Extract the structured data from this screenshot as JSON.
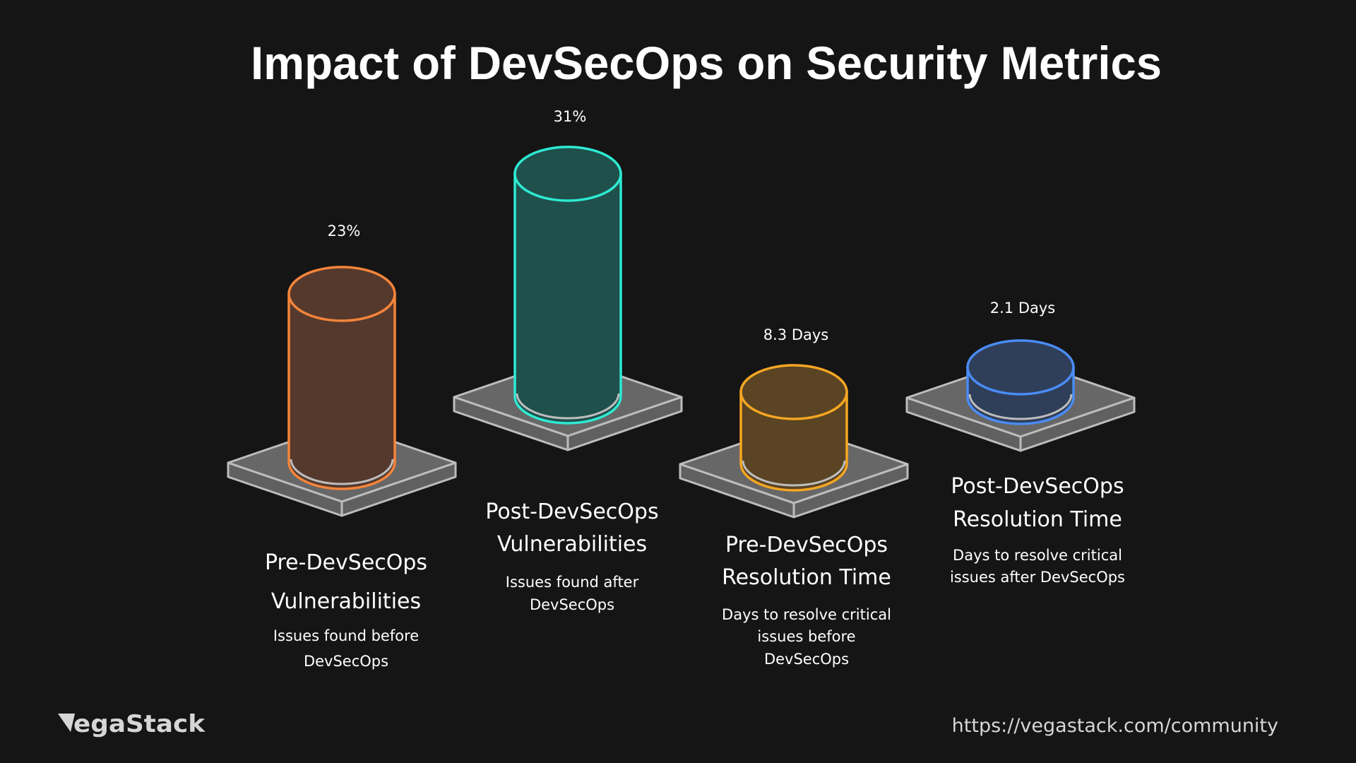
{
  "chart_data": {
    "type": "bar",
    "title": "Impact of DevSecOps on Security Metrics",
    "style": "3d-cylinder",
    "categories": [
      {
        "title": [
          "Pre-DevSecOps",
          "Vulnerabilities"
        ],
        "subtitle": [
          "Issues found before",
          "DevSecOps"
        ]
      },
      {
        "title": [
          "Post-DevSecOps",
          "Vulnerabilities"
        ],
        "subtitle": [
          "Issues found after",
          "DevSecOps"
        ]
      },
      {
        "title": [
          "Pre-DevSecOps",
          "Resolution Time"
        ],
        "subtitle": [
          "Days to resolve critical",
          "issues before",
          "DevSecOps"
        ]
      },
      {
        "title": [
          "Post-DevSecOps",
          "Resolution Time"
        ],
        "subtitle": [
          "Days to resolve critical",
          "issues after DevSecOps"
        ]
      }
    ],
    "values": [
      23,
      31,
      8.3,
      2.1
    ],
    "value_labels": [
      "23%",
      "31%",
      "8.3 Days",
      "2.1 Days"
    ],
    "colors": [
      {
        "stroke": "#F5843A",
        "fill": "#55392D"
      },
      {
        "stroke": "#2EEAD3",
        "fill": "#1F504B"
      },
      {
        "stroke": "#F5A623",
        "fill": "#5A4423"
      },
      {
        "stroke": "#4A8CF5",
        "fill": "#2F3F5A"
      }
    ],
    "background": "#151515",
    "grid": false,
    "legend": "none"
  },
  "footer": {
    "brand": "VegaStack",
    "url": "https://vegastack.com/community"
  }
}
